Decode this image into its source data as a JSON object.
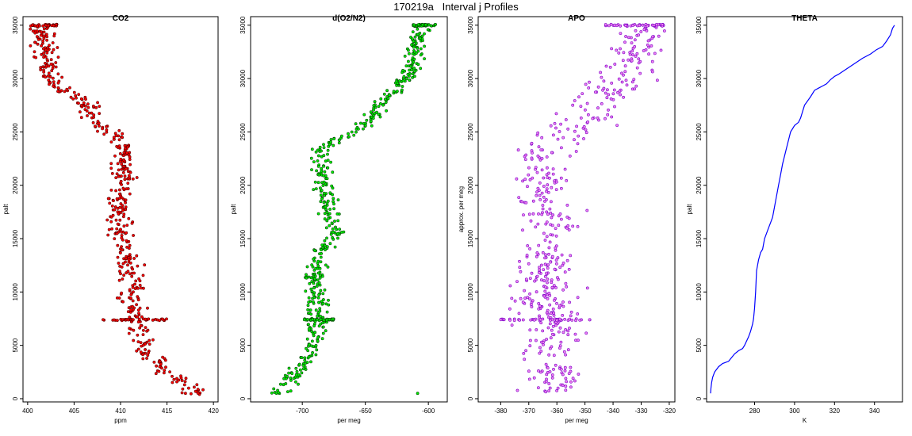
{
  "figure": {
    "title": "170219a   Interval j Profiles"
  },
  "chart_data": [
    {
      "type": "scatter",
      "title": "CO2",
      "xlabel": "ppm",
      "ylabel": "palt",
      "xlim": [
        399.5,
        420.5
      ],
      "ylim": [
        -300,
        35800
      ],
      "xticks": [
        400,
        405,
        410,
        415,
        420
      ],
      "yticks": [
        0,
        5000,
        10000,
        15000,
        20000,
        25000,
        30000,
        35000
      ],
      "fill": "#ff0000",
      "stroke": "#5a0000",
      "profile": [
        [
          0,
          418.5
        ],
        [
          800,
          417.8
        ],
        [
          1500,
          417.0
        ],
        [
          2200,
          415.5
        ],
        [
          3000,
          414.5
        ],
        [
          4000,
          413.0
        ],
        [
          5000,
          412.3
        ],
        [
          6500,
          411.8
        ],
        [
          7500,
          411.5
        ],
        [
          9000,
          411.2
        ],
        [
          11000,
          411.0
        ],
        [
          13000,
          410.8
        ],
        [
          15000,
          410.0
        ],
        [
          17000,
          409.7
        ],
        [
          19000,
          409.8
        ],
        [
          21000,
          410.5
        ],
        [
          23000,
          410.3
        ],
        [
          24500,
          409.5
        ],
        [
          25500,
          408.0
        ],
        [
          27000,
          407.0
        ],
        [
          28500,
          405.0
        ],
        [
          29500,
          403.0
        ],
        [
          30500,
          402.5
        ],
        [
          31500,
          402.3
        ],
        [
          33000,
          402.0
        ],
        [
          34000,
          401.5
        ],
        [
          35000,
          401.0
        ]
      ],
      "horizontal_bands": [
        [
          7400,
          408.0,
          415.0
        ],
        [
          35000,
          400.5,
          403.2
        ]
      ]
    },
    {
      "type": "scatter",
      "title": "d(O2/N2)",
      "xlabel": "per meg",
      "ylabel": "palt",
      "xlim": [
        -741,
        -585
      ],
      "ylim": [
        -300,
        35800
      ],
      "xticks": [
        -700,
        -650,
        -600
      ],
      "yticks": [
        0,
        5000,
        10000,
        15000,
        20000,
        25000,
        30000,
        35000
      ],
      "fill": "#00ee00",
      "stroke": "#004400",
      "profile": [
        [
          500,
          -720
        ],
        [
          1500,
          -712
        ],
        [
          2500,
          -705
        ],
        [
          3500,
          -697
        ],
        [
          4500,
          -693
        ],
        [
          6000,
          -690
        ],
        [
          7400,
          -688
        ],
        [
          9000,
          -688
        ],
        [
          11000,
          -690
        ],
        [
          13000,
          -688
        ],
        [
          14500,
          -683
        ],
        [
          15500,
          -672
        ],
        [
          16500,
          -675
        ],
        [
          18000,
          -680
        ],
        [
          19500,
          -683
        ],
        [
          21000,
          -684
        ],
        [
          22500,
          -686
        ],
        [
          23500,
          -684
        ],
        [
          24500,
          -668
        ],
        [
          25500,
          -650
        ],
        [
          27000,
          -640
        ],
        [
          28500,
          -630
        ],
        [
          29500,
          -621
        ],
        [
          31000,
          -612
        ],
        [
          32500,
          -610
        ],
        [
          34000,
          -608
        ],
        [
          35000,
          -605
        ]
      ],
      "horizontal_bands": [
        [
          7400,
          -700,
          -675
        ],
        [
          35000,
          -612,
          -594
        ]
      ]
    },
    {
      "type": "scatter",
      "title": "APO",
      "xlabel": "per meg",
      "ylabel": "approx. per meg",
      "xlim": [
        -388,
        -318
      ],
      "ylim": [
        -300,
        35800
      ],
      "xticks": [
        -380,
        -370,
        -360,
        -350,
        -340,
        -330,
        -320
      ],
      "yticks": [
        0,
        5000,
        10000,
        15000,
        20000,
        25000,
        30000,
        35000
      ],
      "fill": "#ee82ee",
      "stroke": "#7a00c8",
      "profile": [
        [
          0,
          -362
        ],
        [
          5000,
          -362
        ],
        [
          10000,
          -364
        ],
        [
          15000,
          -363
        ],
        [
          20000,
          -364
        ],
        [
          23000,
          -366
        ],
        [
          24500,
          -360
        ],
        [
          26000,
          -350
        ],
        [
          28000,
          -345
        ],
        [
          30000,
          -336
        ],
        [
          32000,
          -333
        ],
        [
          34000,
          -330
        ],
        [
          35000,
          -330
        ]
      ],
      "horizontal_bands": [
        [
          7400,
          -381,
          -348
        ],
        [
          35000,
          -343,
          -322
        ]
      ]
    },
    {
      "type": "line",
      "title": "THETA",
      "xlabel": "K",
      "ylabel": "palt",
      "xlim": [
        256,
        354
      ],
      "ylim": [
        -300,
        35800
      ],
      "xticks": [
        280,
        300,
        320,
        340
      ],
      "yticks": [
        0,
        5000,
        10000,
        15000,
        20000,
        25000,
        30000,
        35000
      ],
      "color": "#0000ff",
      "x": [
        258.0,
        258.2,
        258.5,
        259,
        260,
        262,
        264,
        267,
        270,
        272,
        274,
        275,
        276,
        277,
        278,
        279,
        279.5,
        280,
        280.5,
        281,
        282,
        283,
        284,
        285,
        286,
        287,
        288,
        289,
        290,
        291,
        292,
        293,
        294,
        296,
        298,
        300,
        302,
        303,
        305,
        308,
        310,
        312,
        314,
        316,
        318,
        320,
        322,
        326,
        330,
        334,
        338,
        341,
        344,
        346,
        348,
        349,
        350
      ],
      "y": [
        500,
        1000,
        1500,
        2000,
        2500,
        3000,
        3300,
        3500,
        4200,
        4500,
        4700,
        5000,
        5400,
        5800,
        6300,
        7000,
        7500,
        8500,
        10000,
        12000,
        13000,
        13700,
        14000,
        15000,
        15500,
        16000,
        16500,
        17000,
        18000,
        19000,
        20000,
        21000,
        22000,
        23500,
        25000,
        25600,
        25900,
        26300,
        27500,
        28300,
        28900,
        29100,
        29300,
        29500,
        29900,
        30200,
        30400,
        30900,
        31400,
        31900,
        32300,
        32700,
        33000,
        33500,
        34100,
        34700,
        35000
      ]
    }
  ]
}
